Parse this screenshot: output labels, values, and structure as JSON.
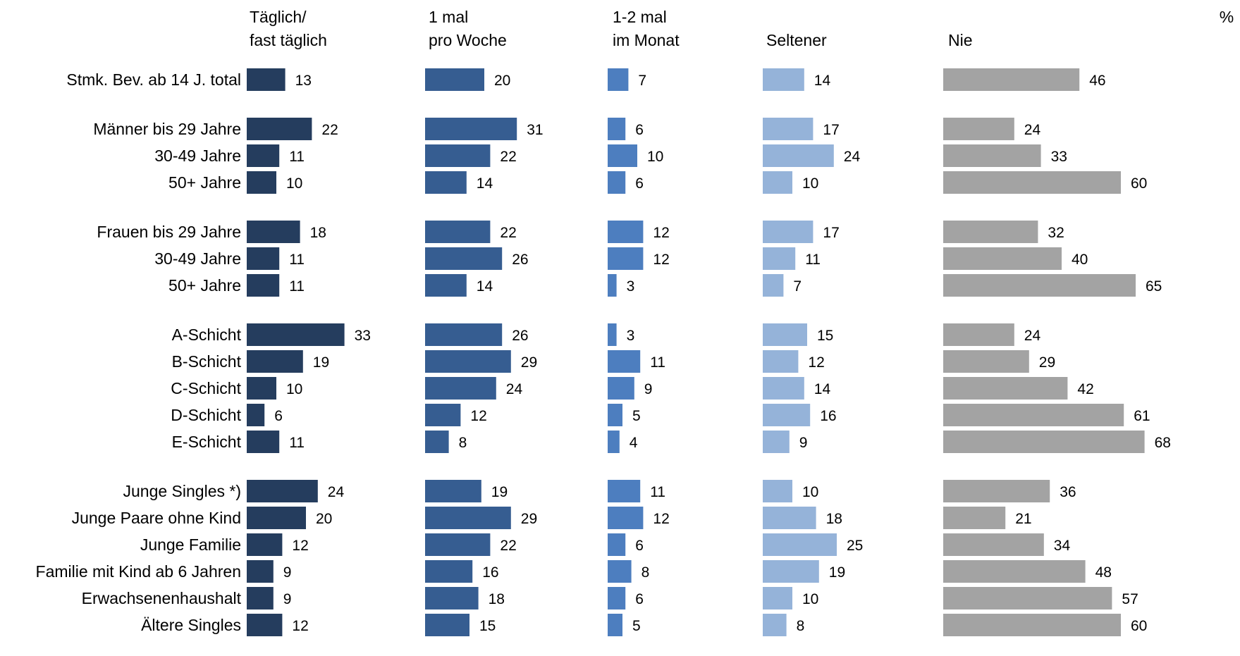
{
  "chart_data": {
    "type": "bar",
    "orientation": "horizontal",
    "unit_label": "%",
    "categories": [
      "Stmk. Bev. ab 14 J. total",
      "Männer bis 29 Jahre",
      "30-49 Jahre",
      "50+ Jahre",
      "Frauen bis 29 Jahre",
      "30-49 Jahre",
      "50+ Jahre",
      "A-Schicht",
      "B-Schicht",
      "C-Schicht",
      "D-Schicht",
      "E-Schicht",
      "Junge Singles *)",
      "Junge Paare ohne Kind",
      "Junge Familie",
      "Familie mit Kind ab 6 Jahren",
      "Erwachsenenhaushalt",
      "Ältere Singles"
    ],
    "groups": [
      [
        0
      ],
      [
        1,
        2,
        3
      ],
      [
        4,
        5,
        6
      ],
      [
        7,
        8,
        9,
        10,
        11
      ],
      [
        12,
        13,
        14,
        15,
        16,
        17
      ]
    ],
    "series": [
      {
        "name": "Täglich/\nfast täglich",
        "color": "#253d5e",
        "values": [
          13,
          22,
          11,
          10,
          18,
          11,
          11,
          33,
          19,
          10,
          6,
          11,
          24,
          20,
          12,
          9,
          9,
          12
        ]
      },
      {
        "name": "1 mal\npro Woche",
        "color": "#365d91",
        "values": [
          20,
          31,
          22,
          14,
          22,
          26,
          14,
          26,
          29,
          24,
          12,
          8,
          19,
          29,
          22,
          16,
          18,
          15
        ]
      },
      {
        "name": "1-2 mal\nim Monat",
        "color": "#4d7ebf",
        "values": [
          7,
          6,
          10,
          6,
          12,
          12,
          3,
          3,
          11,
          9,
          5,
          4,
          11,
          12,
          6,
          8,
          6,
          5
        ]
      },
      {
        "name": "Seltener",
        "color": "#95b3d9",
        "values": [
          14,
          17,
          24,
          10,
          17,
          11,
          7,
          15,
          12,
          14,
          16,
          9,
          10,
          18,
          25,
          19,
          10,
          8
        ]
      },
      {
        "name": "Nie",
        "color": "#a3a3a3",
        "values": [
          46,
          24,
          33,
          60,
          32,
          40,
          65,
          24,
          29,
          42,
          61,
          68,
          36,
          21,
          34,
          48,
          57,
          60
        ]
      }
    ]
  }
}
